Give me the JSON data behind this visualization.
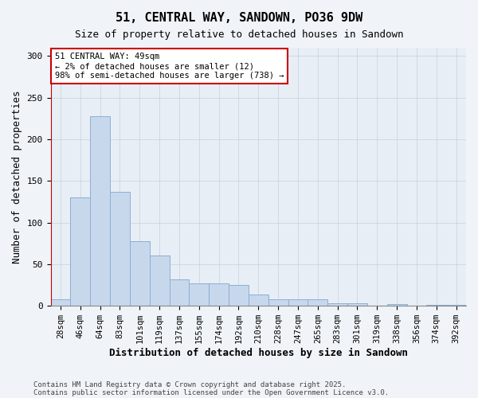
{
  "title1": "51, CENTRAL WAY, SANDOWN, PO36 9DW",
  "title2": "Size of property relative to detached houses in Sandown",
  "xlabel": "Distribution of detached houses by size in Sandown",
  "ylabel": "Number of detached properties",
  "categories": [
    "28sqm",
    "46sqm",
    "64sqm",
    "83sqm",
    "101sqm",
    "119sqm",
    "137sqm",
    "155sqm",
    "174sqm",
    "192sqm",
    "210sqm",
    "228sqm",
    "247sqm",
    "265sqm",
    "283sqm",
    "301sqm",
    "319sqm",
    "338sqm",
    "356sqm",
    "374sqm",
    "392sqm"
  ],
  "values": [
    8,
    130,
    228,
    137,
    78,
    60,
    32,
    27,
    27,
    25,
    14,
    8,
    8,
    8,
    3,
    3,
    0,
    2,
    0,
    1,
    1
  ],
  "bar_color": "#c8d8ec",
  "bar_edge_color": "#8aafd4",
  "vline_color": "#cc0000",
  "vline_x_idx": 0,
  "annotation_text": "51 CENTRAL WAY: 49sqm\n← 2% of detached houses are smaller (12)\n98% of semi-detached houses are larger (738) →",
  "annotation_box_color": "#ffffff",
  "annotation_box_edge": "#cc0000",
  "ylim": [
    0,
    310
  ],
  "yticks": [
    0,
    50,
    100,
    150,
    200,
    250,
    300
  ],
  "footnote1": "Contains HM Land Registry data © Crown copyright and database right 2025.",
  "footnote2": "Contains public sector information licensed under the Open Government Licence v3.0.",
  "bg_color": "#f0f4f8",
  "plot_bg_color": "#e8eef5",
  "grid_color": "#c8d0da",
  "title_fontsize": 11,
  "subtitle_fontsize": 9,
  "tick_fontsize": 7.5,
  "label_fontsize": 9,
  "annot_fontsize": 7.5,
  "footnote_fontsize": 6.5
}
